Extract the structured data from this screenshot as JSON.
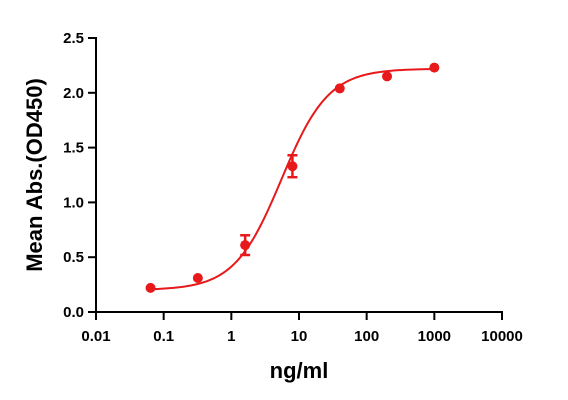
{
  "chart_data": {
    "type": "scatter",
    "title": "",
    "xlabel": "ng/ml",
    "ylabel": "Mean Abs.(OD450)",
    "x_scale": "log",
    "xlim": [
      0.01,
      10000
    ],
    "ylim": [
      0.0,
      2.5
    ],
    "x_ticks": [
      0.01,
      0.1,
      1,
      10,
      100,
      1000,
      10000
    ],
    "x_tick_labels": [
      "0.01",
      "0.1",
      "1",
      "10",
      "100",
      "1000",
      "10000"
    ],
    "y_ticks": [
      0.0,
      0.5,
      1.0,
      1.5,
      2.0,
      2.5
    ],
    "y_tick_labels": [
      "0.0",
      "0.5",
      "1.0",
      "1.5",
      "2.0",
      "2.5"
    ],
    "grid": false,
    "legend": "none",
    "color": "#e8191b",
    "series": [
      {
        "points": [
          {
            "x": 0.064,
            "y": 0.22,
            "err": 0.0
          },
          {
            "x": 0.32,
            "y": 0.31,
            "err": 0.0
          },
          {
            "x": 1.6,
            "y": 0.61,
            "err": 0.09
          },
          {
            "x": 8.0,
            "y": 1.33,
            "err": 0.1
          },
          {
            "x": 40,
            "y": 2.04,
            "err": 0.0
          },
          {
            "x": 200,
            "y": 2.15,
            "err": 0.0
          },
          {
            "x": 1000,
            "y": 2.23,
            "err": 0.0
          }
        ],
        "fit": {
          "model": "4PL",
          "bottom": 0.2,
          "top": 2.22,
          "ec50": 5.5,
          "hill": 1.25,
          "x_range": [
            0.064,
            1000
          ]
        }
      }
    ]
  }
}
